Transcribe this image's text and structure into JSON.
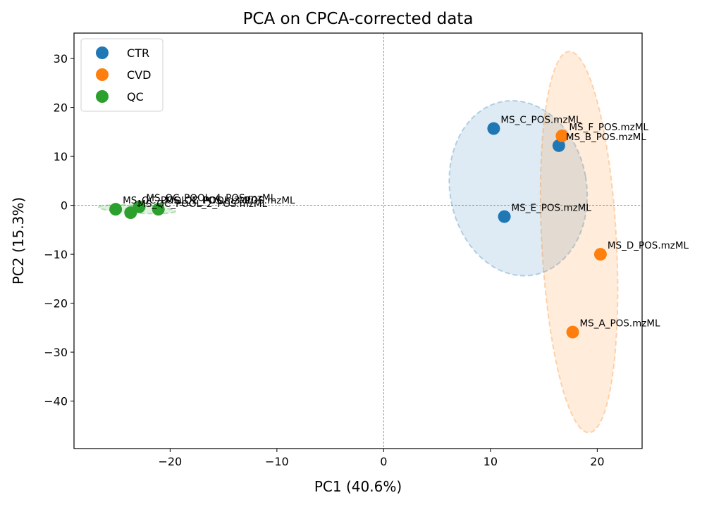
{
  "chart_data": {
    "type": "scatter",
    "title": "PCA on CPCA-corrected data",
    "xlabel": "PC1 (40.6%)",
    "ylabel": "PC2 (15.3%)",
    "xlim": [
      -29,
      24.2
    ],
    "ylim": [
      -49.7,
      35.2
    ],
    "xticks": [
      -20,
      -10,
      0,
      10,
      20
    ],
    "yticks": [
      -40,
      -30,
      -20,
      -10,
      0,
      10,
      20,
      30
    ],
    "reference_lines": {
      "x": 0,
      "y": 0,
      "style": "dashed",
      "color": "#7f7f7f"
    },
    "legend": {
      "placement": "top-left"
    },
    "series": [
      {
        "name": "CTR",
        "color": "#1f77b4",
        "points": [
          {
            "x": 10.3,
            "y": 15.7,
            "label": "MS_C_POS.mzML"
          },
          {
            "x": 16.4,
            "y": 12.2,
            "label": "MS_B_POS.mzML"
          },
          {
            "x": 11.3,
            "y": -2.3,
            "label": "MS_E_POS.mzML"
          }
        ],
        "ellipse": {
          "cx": 12.6,
          "cy": 3.5,
          "rx": 6.4,
          "ry": 18.0,
          "angle": -10
        }
      },
      {
        "name": "CVD",
        "color": "#ff7f0e",
        "points": [
          {
            "x": 16.7,
            "y": 14.2,
            "label": "MS_F_POS.mzML"
          },
          {
            "x": 20.3,
            "y": -10.0,
            "label": "MS_D_POS.mzML"
          },
          {
            "x": 17.7,
            "y": -25.9,
            "label": "MS_A_POS.mzML"
          }
        ],
        "ellipse": {
          "cx": 18.3,
          "cy": -7.5,
          "rx": 3.5,
          "ry": 39.0,
          "angle": -3
        }
      },
      {
        "name": "QC",
        "color": "#2ca02c",
        "points": [
          {
            "x": -25.1,
            "y": -0.8,
            "label": "MS_QC_POOL_1_POS.mzML"
          },
          {
            "x": -23.7,
            "y": -1.5,
            "label": "MS_QC_POOL_2_POS.mzML"
          },
          {
            "x": -22.9,
            "y": -0.3,
            "label": "MS_QC_POOL_4_POS.mzML"
          },
          {
            "x": -21.1,
            "y": -0.8,
            "label": "MS_QC_POOL_3_POS.mzML"
          }
        ],
        "ellipse": {
          "cx": -23.1,
          "cy": -0.8,
          "rx": 3.6,
          "ry": 0.8,
          "angle": 3
        }
      }
    ]
  }
}
